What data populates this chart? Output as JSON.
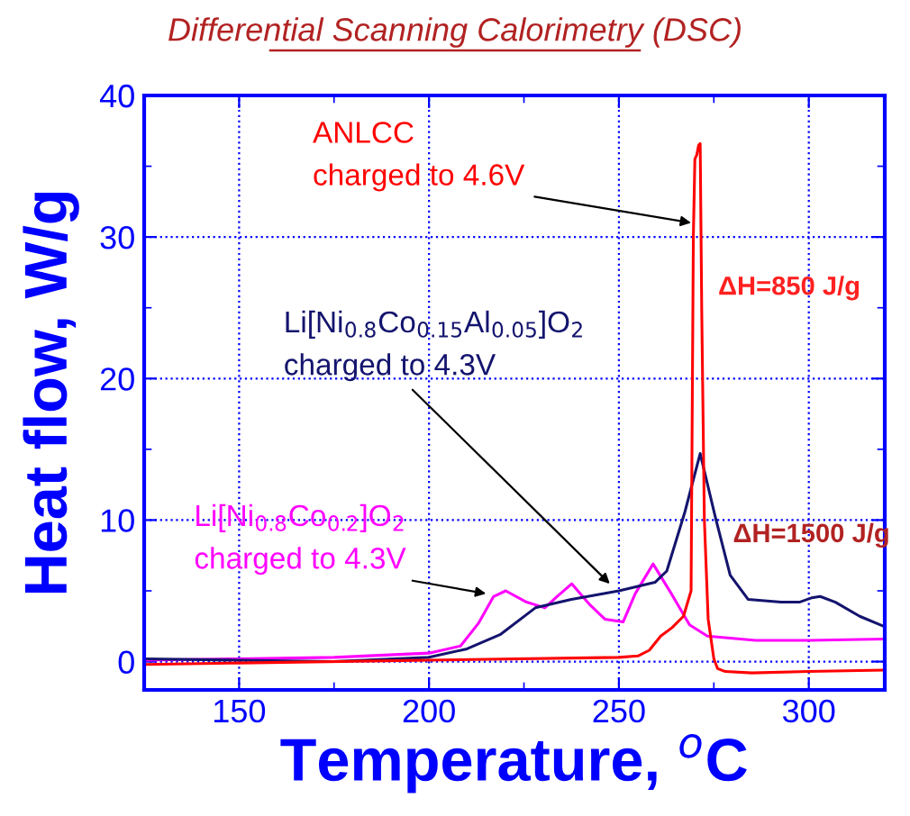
{
  "chart_data": {
    "type": "line",
    "title": "Differential Scanning Calorimetry (DSC)",
    "xlabel": "Temperature, $^{o}$C",
    "ylabel": "Heat flow, W/g",
    "xlim": [
      125,
      320
    ],
    "xticks": [
      150,
      200,
      250,
      300
    ],
    "ylim": [
      -2,
      40
    ],
    "yticks": [
      0,
      10,
      20,
      30,
      40
    ],
    "grid": true,
    "marker": "none",
    "line_style": "solid",
    "series": [
      {
        "name": "Li[Ni$_{0.8}$Co$_{0.2}$]O$_{2}$",
        "color": "#ff00ff",
        "x": [
          125,
          150,
          175,
          200,
          208.3,
          213,
          217,
          220.2,
          225.7,
          230.5,
          233.7,
          237.6,
          242.4,
          246.3,
          251.1,
          254.3,
          259,
          263.8,
          268.6,
          273.3,
          286,
          300,
          319.7
        ],
        "values": [
          0.1,
          0.2,
          0.3,
          0.6,
          1.1,
          2.7,
          4.6,
          5.0,
          4.2,
          3.8,
          4.6,
          5.5,
          4.0,
          3.0,
          2.8,
          4.8,
          6.9,
          4.8,
          2.6,
          1.8,
          1.5,
          1.5,
          1.6
        ]
      },
      {
        "name": "Li[Ni$_{0.8}$Co$_{0.15}$Al$_{0.05}$]O$_{2}$",
        "color": "#14146e",
        "x": [
          125,
          150,
          175,
          200,
          210,
          218.7,
          228,
          237.5,
          250,
          259.5,
          262.6,
          267.4,
          271.4,
          275.3,
          279.3,
          284,
          292.7,
          297.5,
          300.7,
          303,
          307,
          313.4,
          319.7
        ],
        "values": [
          0.2,
          0.1,
          0.0,
          0.3,
          0.9,
          1.9,
          3.8,
          4.4,
          5.0,
          5.6,
          6.4,
          10.6,
          14.7,
          10.3,
          6.1,
          4.4,
          4.2,
          4.2,
          4.5,
          4.6,
          4.2,
          3.2,
          2.5
        ]
      },
      {
        "name": "ANLCC",
        "color": "#ff0000",
        "x": [
          125,
          150,
          200,
          250,
          255,
          258,
          261,
          264,
          267,
          269,
          269.6,
          270,
          270.5,
          271,
          271.4,
          271.8,
          272.5,
          273.5,
          275,
          276,
          278,
          285,
          300,
          320
        ],
        "values": [
          -0.2,
          -0.1,
          0.1,
          0.3,
          0.4,
          0.8,
          1.8,
          2.4,
          3.2,
          5,
          30,
          35.5,
          35.8,
          36.5,
          36.6,
          25,
          10,
          3,
          0.2,
          -0.5,
          -0.7,
          -0.8,
          -0.7,
          -0.6
        ]
      }
    ],
    "annotations": [
      {
        "text": "charged to 4.3V",
        "x": 215,
        "y": 4.8
      },
      {
        "text": "charged to 4.3V",
        "x": 247.6,
        "y": 5.5
      },
      {
        "text": "charged to 4.6V",
        "x": 269,
        "y": 31
      },
      "ΔH=850 J/g",
      "ΔH=1500 J/g"
    ]
  }
}
